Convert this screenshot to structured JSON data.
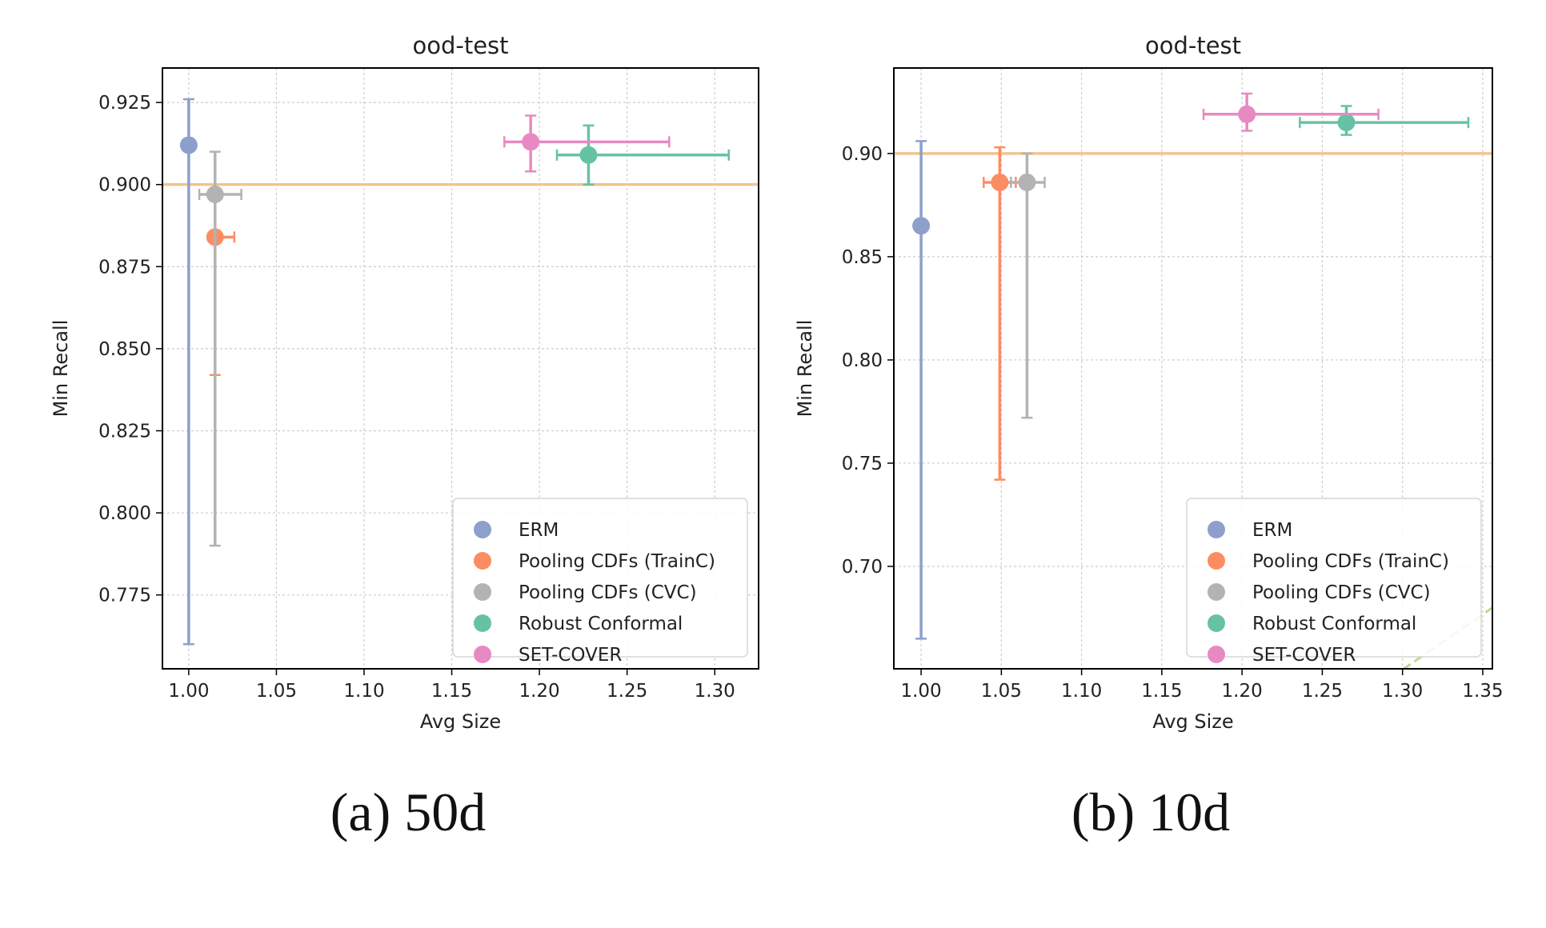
{
  "captions": [
    "(a) 50d",
    "(b) 10d"
  ],
  "chart_data": [
    {
      "type": "scatter",
      "title": "ood-test",
      "xlabel": "Avg Size",
      "ylabel": "Min Recall",
      "xlim": [
        0.985,
        1.325
      ],
      "ylim": [
        0.7525,
        0.9355
      ],
      "xticks": [
        1.0,
        1.05,
        1.1,
        1.15,
        1.2,
        1.25,
        1.3
      ],
      "xtick_labels": [
        "1.00",
        "1.05",
        "1.10",
        "1.15",
        "1.20",
        "1.25",
        "1.30"
      ],
      "yticks": [
        0.775,
        0.8,
        0.825,
        0.85,
        0.875,
        0.9,
        0.925
      ],
      "ytick_labels": [
        "0.775",
        "0.800",
        "0.825",
        "0.850",
        "0.875",
        "0.900",
        "0.925"
      ],
      "grid": true,
      "legend_position": "bottom-right",
      "reference_line": {
        "y": 0.9,
        "color": "#f1c48f"
      },
      "series": [
        {
          "name": "ERM",
          "color": "#8da0cb",
          "x": 1.0,
          "y": 0.912,
          "xerr": [
            1.0,
            1.0
          ],
          "yerr": [
            0.76,
            0.926
          ]
        },
        {
          "name": "Pooling CDFs (TrainC)",
          "color": "#fc8d62",
          "x": 1.015,
          "y": 0.884,
          "xerr": [
            1.012,
            1.026
          ],
          "yerr": [
            0.842,
            0.884
          ]
        },
        {
          "name": "Pooling CDFs (CVC)",
          "color": "#b3b3b3",
          "x": 1.015,
          "y": 0.897,
          "xerr": [
            1.006,
            1.03
          ],
          "yerr": [
            0.79,
            0.91
          ]
        },
        {
          "name": "Robust Conformal",
          "color": "#66c2a5",
          "x": 1.228,
          "y": 0.909,
          "xerr": [
            1.21,
            1.308
          ],
          "yerr": [
            0.9,
            0.918
          ]
        },
        {
          "name": "SET-COVER",
          "color": "#e78ac3",
          "x": 1.195,
          "y": 0.913,
          "xerr": [
            1.18,
            1.274
          ],
          "yerr": [
            0.904,
            0.921
          ]
        }
      ]
    },
    {
      "type": "scatter",
      "title": "ood-test",
      "xlabel": "Avg Size",
      "ylabel": "Min Recall",
      "xlim": [
        0.983,
        1.356
      ],
      "ylim": [
        0.6504,
        0.9414
      ],
      "xticks": [
        1.0,
        1.05,
        1.1,
        1.15,
        1.2,
        1.25,
        1.3,
        1.35
      ],
      "xtick_labels": [
        "1.00",
        "1.05",
        "1.10",
        "1.15",
        "1.20",
        "1.25",
        "1.30",
        "1.35"
      ],
      "yticks": [
        0.7,
        0.75,
        0.8,
        0.85,
        0.9
      ],
      "ytick_labels": [
        "0.70",
        "0.75",
        "0.80",
        "0.85",
        "0.90"
      ],
      "grid": true,
      "legend_position": "bottom-right",
      "reference_line": {
        "y": 0.9,
        "color": "#f1c48f"
      },
      "diagonal_line": {
        "x": [
          1.3,
          1.356
        ],
        "y": [
          0.65,
          0.68
        ],
        "color": "#b5dd85"
      },
      "series": [
        {
          "name": "ERM",
          "color": "#8da0cb",
          "x": 1.0,
          "y": 0.865,
          "xerr": [
            1.0,
            1.0
          ],
          "yerr": [
            0.665,
            0.906
          ]
        },
        {
          "name": "Pooling CDFs (TrainC)",
          "color": "#fc8d62",
          "x": 1.049,
          "y": 0.886,
          "xerr": [
            1.039,
            1.059
          ],
          "yerr": [
            0.742,
            0.903
          ]
        },
        {
          "name": "Pooling CDFs (CVC)",
          "color": "#b3b3b3",
          "x": 1.066,
          "y": 0.886,
          "xerr": [
            1.056,
            1.077
          ],
          "yerr": [
            0.772,
            0.9
          ]
        },
        {
          "name": "Robust Conformal",
          "color": "#66c2a5",
          "x": 1.265,
          "y": 0.915,
          "xerr": [
            1.236,
            1.341
          ],
          "yerr": [
            0.909,
            0.923
          ]
        },
        {
          "name": "SET-COVER",
          "color": "#e78ac3",
          "x": 1.203,
          "y": 0.919,
          "xerr": [
            1.176,
            1.285
          ],
          "yerr": [
            0.911,
            0.929
          ]
        }
      ]
    }
  ]
}
